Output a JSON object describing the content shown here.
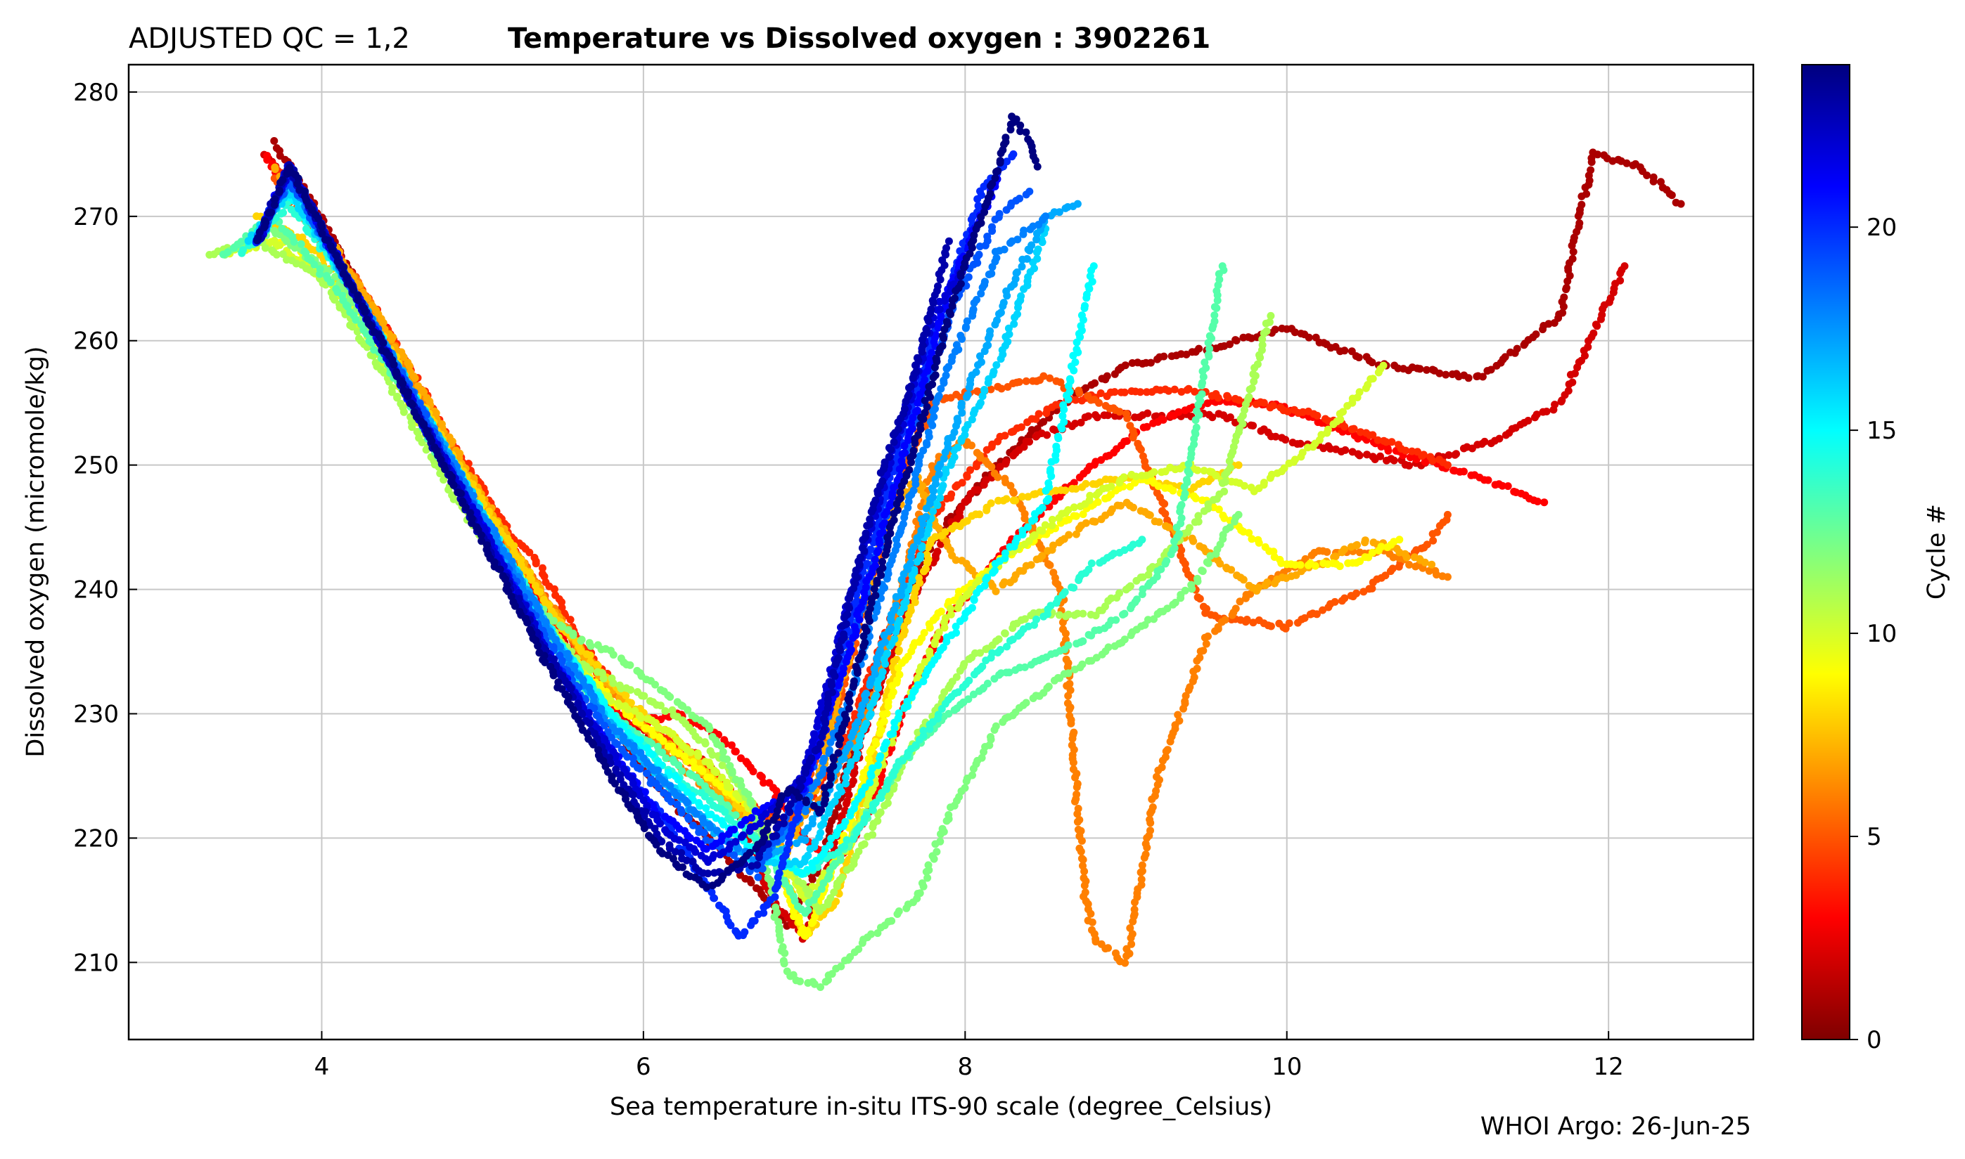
{
  "chart_data": {
    "type": "scatter",
    "title_prefix": "ADJUSTED QC = 1,2",
    "title": "Temperature vs Dissolved oxygen : 3902261",
    "xlabel": "Sea temperature in-situ ITS-90 scale  (degree_Celsius)",
    "ylabel": "Dissolved oxygen  (micromole/kg)",
    "xlim": [
      2.8,
      12.9
    ],
    "ylim": [
      203.8,
      282.2
    ],
    "xticks": [
      4,
      6,
      8,
      10,
      12
    ],
    "yticks": [
      210,
      220,
      230,
      240,
      250,
      260,
      270,
      280
    ],
    "grid": true,
    "colorbar": {
      "label": "Cycle #",
      "colormap": "jet-reversed",
      "range": [
        0,
        24
      ],
      "ticks": [
        0,
        5,
        10,
        15,
        20
      ],
      "low_color": "#7f0000",
      "high_color": "#00007f"
    },
    "credit": "WHOI Argo: 26-Jun-25",
    "series": [
      {
        "cycle": 1,
        "x": [
          3.7,
          3.9,
          4.2,
          4.6,
          5.0,
          5.4,
          5.8,
          6.1,
          6.4,
          6.7,
          6.9,
          7.1,
          7.3,
          7.5,
          7.8,
          8.2,
          8.6,
          9.0,
          9.4,
          10.0,
          10.6,
          11.2,
          11.7,
          11.9,
          12.2,
          12.45
        ],
        "y": [
          276,
          272,
          265,
          256,
          247,
          238,
          229,
          224,
          220,
          216,
          213,
          218,
          227,
          236,
          244,
          250,
          255,
          258,
          259,
          261,
          258,
          257,
          262,
          275,
          274,
          271
        ]
      },
      {
        "cycle": 2,
        "x": [
          3.65,
          3.9,
          4.2,
          4.6,
          5.0,
          5.4,
          5.8,
          6.1,
          6.4,
          6.6,
          6.8,
          7.0,
          7.2,
          7.4,
          7.7,
          8.0,
          8.4,
          8.8,
          9.2,
          9.6,
          10.0,
          10.4,
          10.8,
          11.3,
          11.7,
          12.1
        ],
        "y": [
          275,
          271,
          264,
          255,
          246,
          237,
          230,
          228,
          226,
          222,
          215,
          212,
          220,
          230,
          240,
          247,
          252,
          254,
          254,
          254,
          252,
          251,
          250,
          252,
          255,
          266
        ]
      },
      {
        "cycle": 3,
        "x": [
          3.65,
          3.9,
          4.3,
          4.7,
          5.1,
          5.5,
          5.9,
          6.2,
          6.5,
          6.8,
          7.0,
          7.2,
          7.4,
          7.6,
          7.9,
          8.3,
          8.7,
          9.1,
          9.5,
          9.9,
          10.3,
          10.7,
          11.2,
          11.6
        ],
        "y": [
          275,
          270,
          263,
          254,
          245,
          236,
          229,
          230,
          228,
          224,
          220,
          218,
          222,
          230,
          238,
          244,
          249,
          253,
          255,
          255,
          253,
          251,
          249,
          247
        ]
      },
      {
        "cycle": 4,
        "x": [
          3.7,
          4.0,
          4.4,
          4.8,
          5.2,
          5.3,
          5.6,
          6.0,
          6.3,
          6.6,
          6.9,
          7.2,
          7.5,
          7.8,
          8.2,
          8.6,
          9.0,
          9.4,
          9.8,
          10.2,
          10.6,
          11.0
        ],
        "y": [
          274,
          269,
          261,
          252,
          244,
          243,
          236,
          229,
          227,
          223,
          221,
          226,
          236,
          246,
          252,
          255,
          256,
          256,
          255,
          254,
          252,
          250
        ]
      },
      {
        "cycle": 5,
        "x": [
          3.7,
          4.0,
          4.4,
          4.8,
          5.2,
          5.6,
          6.0,
          6.3,
          6.6,
          6.9,
          7.2,
          7.4,
          7.6,
          7.8,
          8.1,
          8.5,
          9.0,
          9.5,
          10.0,
          10.5,
          10.9,
          11.0
        ],
        "y": [
          273,
          268,
          260,
          251,
          243,
          235,
          229,
          226,
          223,
          221,
          230,
          240,
          249,
          255,
          256,
          257,
          254,
          238,
          237,
          240,
          244,
          246
        ]
      },
      {
        "cycle": 6,
        "x": [
          3.8,
          4.2,
          4.6,
          5.0,
          5.4,
          5.8,
          6.2,
          6.5,
          6.8,
          7.1,
          7.4,
          7.6,
          7.8,
          8.0,
          8.3,
          8.6,
          8.7,
          8.75,
          8.8,
          9.0,
          9.2,
          9.5,
          9.8,
          10.2,
          10.6,
          11.0
        ],
        "y": [
          272,
          265,
          256,
          247,
          239,
          232,
          226,
          223,
          220,
          223,
          230,
          240,
          250,
          252,
          248,
          240,
          222,
          215,
          212,
          210,
          225,
          236,
          240,
          243,
          243,
          241
        ]
      },
      {
        "cycle": 7,
        "x": [
          3.7,
          4.0,
          4.4,
          4.8,
          5.2,
          5.6,
          6.0,
          6.3,
          6.6,
          6.9,
          7.1,
          7.3,
          7.5,
          7.7,
          7.9,
          8.2,
          8.6,
          9.0,
          9.4,
          9.8,
          10.2,
          10.5,
          10.9
        ],
        "y": [
          274,
          269,
          261,
          252,
          243,
          235,
          229,
          226,
          222,
          219,
          225,
          236,
          245,
          249,
          243,
          240,
          244,
          247,
          244,
          240,
          242,
          244,
          242
        ]
      },
      {
        "cycle": 8,
        "x": [
          3.6,
          3.9,
          4.3,
          4.7,
          5.1,
          5.5,
          5.9,
          6.2,
          6.5,
          6.8,
          7.0,
          7.2,
          7.4,
          7.6,
          7.8,
          8.2,
          8.6,
          9.0,
          9.4,
          9.7
        ],
        "y": [
          270,
          268,
          262,
          253,
          245,
          237,
          231,
          228,
          224,
          220,
          212,
          215,
          225,
          236,
          244,
          247,
          248,
          249,
          248,
          250
        ]
      },
      {
        "cycle": 9,
        "x": [
          3.5,
          3.8,
          4.2,
          4.6,
          5.0,
          5.4,
          5.8,
          6.1,
          6.4,
          6.7,
          7.0,
          7.2,
          7.4,
          7.6,
          7.9,
          8.3,
          8.7,
          9.1,
          9.5,
          10.0,
          10.4,
          10.7
        ],
        "y": [
          268,
          268,
          263,
          254,
          246,
          237,
          231,
          228,
          225,
          222,
          212,
          218,
          226,
          234,
          239,
          243,
          246,
          249,
          247,
          242,
          242,
          244
        ]
      },
      {
        "cycle": 10,
        "x": [
          3.4,
          3.7,
          4.1,
          4.5,
          4.9,
          5.3,
          5.7,
          6.1,
          6.4,
          6.7,
          7.0,
          7.3,
          7.6,
          7.9,
          8.2,
          8.6,
          9.0,
          9.4,
          9.8,
          10.2,
          10.6
        ],
        "y": [
          267,
          268,
          264,
          256,
          247,
          239,
          232,
          229,
          226,
          222,
          215,
          220,
          230,
          238,
          242,
          246,
          249,
          250,
          248,
          252,
          258
        ]
      },
      {
        "cycle": 11,
        "x": [
          3.3,
          3.6,
          4.0,
          4.4,
          4.8,
          5.2,
          5.6,
          5.9,
          6.2,
          6.5,
          6.8,
          7.1,
          7.4,
          7.7,
          8.0,
          8.4,
          8.8,
          9.2,
          9.6,
          9.9
        ],
        "y": [
          267,
          268,
          265,
          257,
          248,
          240,
          234,
          232,
          230,
          226,
          220,
          214,
          220,
          228,
          234,
          238,
          238,
          242,
          248,
          262
        ]
      },
      {
        "cycle": 12,
        "x": [
          3.4,
          3.7,
          4.1,
          4.5,
          4.9,
          5.3,
          5.6,
          5.8,
          6.1,
          6.4,
          6.7,
          6.9,
          7.1,
          7.4,
          7.7,
          7.9,
          8.2,
          8.6,
          9.0,
          9.4,
          9.7
        ],
        "y": [
          267,
          269,
          265,
          257,
          248,
          239,
          236,
          235,
          232,
          229,
          222,
          209,
          208,
          212,
          215,
          222,
          229,
          233,
          236,
          240,
          246
        ]
      },
      {
        "cycle": 13,
        "x": [
          3.4,
          3.7,
          4.1,
          4.5,
          4.9,
          5.3,
          5.7,
          6.1,
          6.4,
          6.7,
          7.0,
          7.3,
          7.6,
          7.9,
          8.2,
          8.6,
          9.0,
          9.3,
          9.6
        ],
        "y": [
          267,
          270,
          264,
          256,
          247,
          238,
          231,
          227,
          224,
          220,
          214,
          220,
          226,
          230,
          233,
          235,
          238,
          243,
          266
        ]
      },
      {
        "cycle": 14,
        "x": [
          3.5,
          3.8,
          4.2,
          4.6,
          5.0,
          5.4,
          5.8,
          6.1,
          6.4,
          6.7,
          7.0,
          7.3,
          7.6,
          7.9,
          8.2,
          8.5,
          8.8,
          9.1
        ],
        "y": [
          267,
          271,
          264,
          255,
          246,
          237,
          230,
          226,
          223,
          220,
          217,
          220,
          226,
          231,
          235,
          238,
          242,
          244
        ]
      },
      {
        "cycle": 15,
        "x": [
          3.55,
          3.8,
          4.2,
          4.6,
          5.0,
          5.4,
          5.8,
          6.1,
          6.4,
          6.7,
          7.0,
          7.3,
          7.6,
          7.9,
          8.2,
          8.5,
          8.8
        ],
        "y": [
          268,
          272,
          264,
          255,
          246,
          237,
          230,
          226,
          222,
          219,
          217,
          222,
          230,
          236,
          242,
          247,
          266
        ]
      },
      {
        "cycle": 16,
        "x": [
          3.55,
          3.8,
          4.2,
          4.6,
          5.0,
          5.4,
          5.8,
          6.1,
          6.4,
          6.7,
          7.0,
          7.3,
          7.6,
          7.9,
          8.2,
          8.5
        ],
        "y": [
          268,
          272,
          264,
          255,
          246,
          237,
          229,
          225,
          221,
          218,
          218,
          226,
          238,
          250,
          258,
          269
        ]
      },
      {
        "cycle": 17,
        "x": [
          3.6,
          3.8,
          4.2,
          4.6,
          5.0,
          5.4,
          5.8,
          6.1,
          6.4,
          6.7,
          7.0,
          7.3,
          7.6,
          7.9,
          8.2,
          8.5,
          8.7
        ],
        "y": [
          268,
          273,
          264,
          255,
          246,
          237,
          229,
          225,
          221,
          218,
          220,
          228,
          240,
          252,
          262,
          270,
          271
        ]
      },
      {
        "cycle": 18,
        "x": [
          3.6,
          3.8,
          4.2,
          4.6,
          5.0,
          5.4,
          5.8,
          6.1,
          6.4,
          6.7,
          7.0,
          7.3,
          7.6,
          7.9,
          8.2,
          8.5
        ],
        "y": [
          268,
          273,
          264,
          255,
          246,
          237,
          229,
          225,
          221,
          218,
          222,
          232,
          245,
          258,
          267,
          270
        ]
      },
      {
        "cycle": 19,
        "x": [
          3.6,
          3.8,
          4.2,
          4.6,
          5.0,
          5.4,
          5.8,
          6.1,
          6.4,
          6.7,
          7.0,
          7.3,
          7.6,
          7.9,
          8.2,
          8.4
        ],
        "y": [
          268,
          273,
          264,
          255,
          245,
          236,
          228,
          224,
          220,
          217,
          224,
          236,
          250,
          262,
          270,
          272
        ]
      },
      {
        "cycle": 20,
        "x": [
          3.6,
          3.8,
          4.2,
          4.6,
          5.0,
          5.4,
          5.8,
          6.1,
          6.4,
          6.6,
          6.8,
          7.0,
          7.3,
          7.6,
          7.9,
          8.1,
          8.3
        ],
        "y": [
          268,
          274,
          264,
          254,
          245,
          235,
          227,
          222,
          216,
          212,
          215,
          224,
          238,
          252,
          264,
          272,
          275
        ]
      },
      {
        "cycle": 21,
        "x": [
          3.6,
          3.8,
          4.2,
          4.6,
          5.0,
          5.4,
          5.8,
          6.1,
          6.4,
          6.7,
          7.0,
          7.3,
          7.6,
          7.9,
          8.2
        ],
        "y": [
          268,
          274,
          264,
          254,
          245,
          235,
          227,
          222,
          219,
          222,
          224,
          236,
          250,
          264,
          273
        ]
      },
      {
        "cycle": 22,
        "x": [
          3.6,
          3.8,
          4.2,
          4.6,
          5.0,
          5.4,
          5.8,
          6.1,
          6.4,
          6.7,
          7.0,
          7.3,
          7.6,
          7.8,
          8.0
        ],
        "y": [
          268,
          274,
          264,
          254,
          245,
          235,
          227,
          221,
          218,
          221,
          225,
          240,
          253,
          262,
          266
        ]
      },
      {
        "cycle": 23,
        "x": [
          3.6,
          3.8,
          4.2,
          4.6,
          5.0,
          5.4,
          5.8,
          6.1,
          6.4,
          6.7,
          6.9,
          7.1,
          7.3,
          7.5,
          7.7,
          7.9
        ],
        "y": [
          268,
          274,
          264,
          254,
          244,
          235,
          226,
          220,
          217,
          218,
          222,
          228,
          240,
          250,
          258,
          268
        ]
      },
      {
        "cycle": 24,
        "x": [
          3.6,
          3.8,
          4.2,
          4.6,
          5.0,
          5.4,
          5.8,
          6.1,
          6.4,
          6.7,
          6.9,
          7.1,
          7.3,
          7.5,
          7.7,
          7.9,
          8.1,
          8.3,
          8.4,
          8.45
        ],
        "y": [
          268,
          274,
          264,
          254,
          244,
          234,
          225,
          219,
          216,
          219,
          224,
          222,
          232,
          243,
          252,
          262,
          270,
          278,
          276,
          274
        ]
      }
    ]
  }
}
